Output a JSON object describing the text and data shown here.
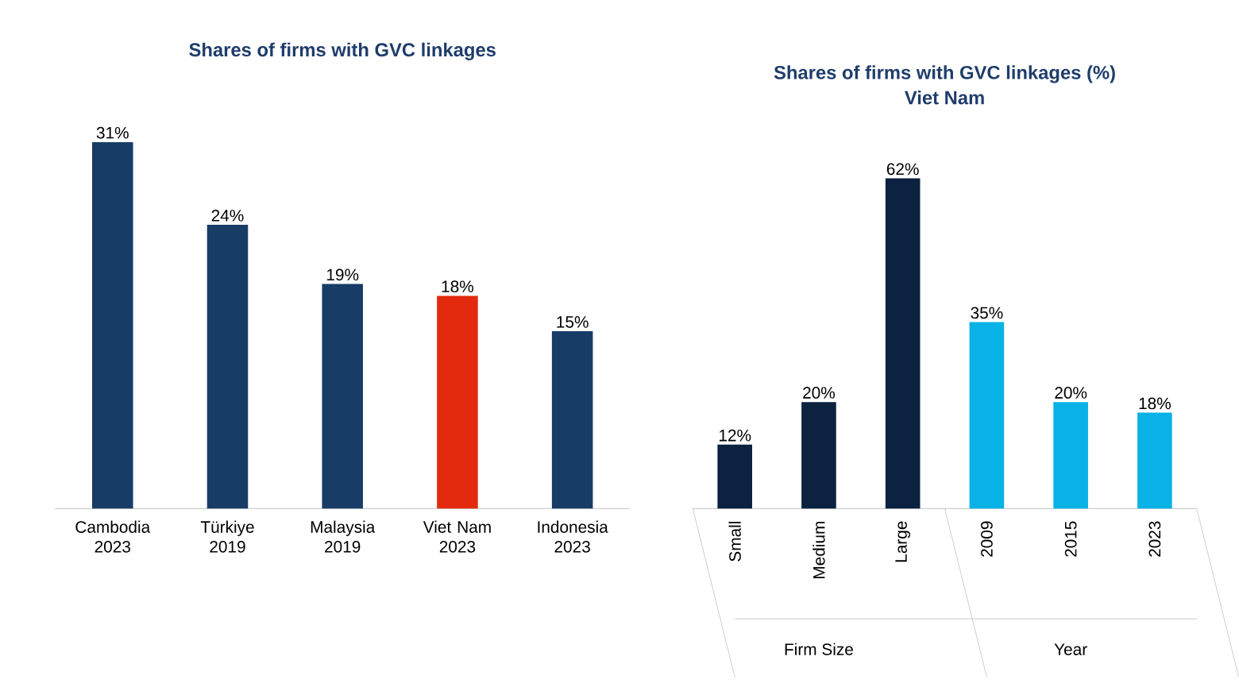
{
  "chart_data": [
    {
      "type": "bar",
      "title": "Shares of firms with GVC linkages",
      "categories": [
        "Cambodia 2023",
        "Türkiye 2019",
        "Malaysia 2019",
        "Viet Nam 2023",
        "Indonesia 2023"
      ],
      "values": [
        31,
        24,
        19,
        18,
        15
      ],
      "value_labels": [
        "31%",
        "24%",
        "19%",
        "18%",
        "15%"
      ],
      "colors": [
        "#173d66",
        "#173d66",
        "#173d66",
        "#e32a0e",
        "#173d66"
      ]
    },
    {
      "type": "bar",
      "title": "Shares of firms with GVC linkages (%)",
      "subtitle": "Viet Nam",
      "categories": [
        "Small",
        "Medium",
        "Large",
        "2009",
        "2015",
        "2023"
      ],
      "values": [
        12,
        20,
        62,
        35,
        20,
        18
      ],
      "value_labels": [
        "12%",
        "20%",
        "62%",
        "35%",
        "20%",
        "18%"
      ],
      "colors": [
        "#0b2240",
        "#0b2240",
        "#0b2240",
        "#08b2e6",
        "#08b2e6",
        "#08b2e6"
      ],
      "annotations": [
        "Firm Size",
        "Year"
      ]
    }
  ]
}
